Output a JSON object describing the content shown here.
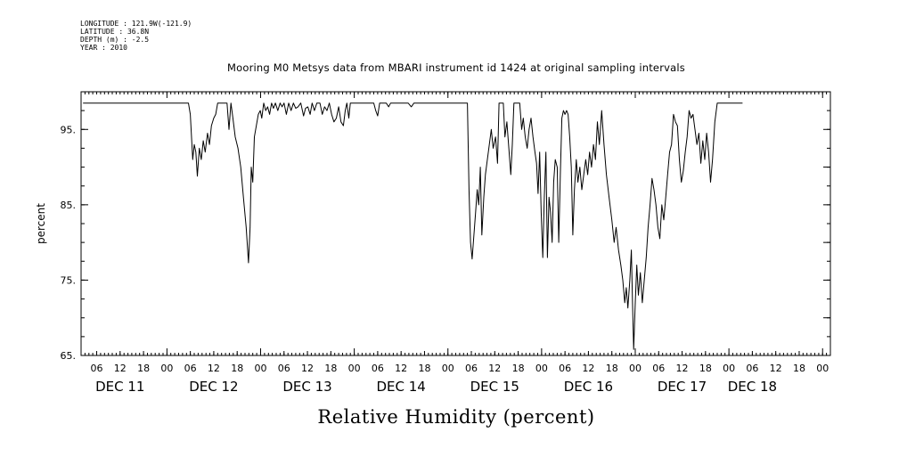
{
  "header": {
    "longitude": "LONGITUDE : 121.9W(-121.9)",
    "latitude": "LATITUDE : 36.8N",
    "depth": "DEPTH (m) : -2.5",
    "year": "YEAR : 2010"
  },
  "colors": {
    "line": "#000000",
    "background": "#ffffff"
  },
  "chart_data": {
    "type": "line",
    "title": "Mooring M0 Metsys data from MBARI instrument id 1424 at original sampling intervals",
    "xlabel": "Relative Humidity (percent)",
    "ylabel": "percent",
    "x_units": "hours since Dec 10 2010 20:00",
    "xlim": [
      6,
      198
    ],
    "ylim": [
      65,
      100
    ],
    "y_ticks": [
      65,
      75,
      85,
      95
    ],
    "y_tick_labels": [
      "65.",
      "75.",
      "85.",
      "95."
    ],
    "x_hour_ticks": [
      {
        "t": 10,
        "label": "06"
      },
      {
        "t": 16,
        "label": "12"
      },
      {
        "t": 22,
        "label": "18"
      },
      {
        "t": 28,
        "label": "00"
      },
      {
        "t": 34,
        "label": "06"
      },
      {
        "t": 40,
        "label": "12"
      },
      {
        "t": 46,
        "label": "18"
      },
      {
        "t": 52,
        "label": "00"
      },
      {
        "t": 58,
        "label": "06"
      },
      {
        "t": 64,
        "label": "12"
      },
      {
        "t": 70,
        "label": "18"
      },
      {
        "t": 76,
        "label": "00"
      },
      {
        "t": 82,
        "label": "06"
      },
      {
        "t": 88,
        "label": "12"
      },
      {
        "t": 94,
        "label": "18"
      },
      {
        "t": 100,
        "label": "00"
      },
      {
        "t": 106,
        "label": "06"
      },
      {
        "t": 112,
        "label": "12"
      },
      {
        "t": 118,
        "label": "18"
      },
      {
        "t": 124,
        "label": "00"
      },
      {
        "t": 130,
        "label": "06"
      },
      {
        "t": 136,
        "label": "12"
      },
      {
        "t": 142,
        "label": "18"
      },
      {
        "t": 148,
        "label": "00"
      },
      {
        "t": 154,
        "label": "06"
      },
      {
        "t": 160,
        "label": "12"
      },
      {
        "t": 166,
        "label": "18"
      },
      {
        "t": 172,
        "label": "00"
      },
      {
        "t": 178,
        "label": "06"
      },
      {
        "t": 184,
        "label": "12"
      },
      {
        "t": 190,
        "label": "18"
      },
      {
        "t": 196,
        "label": "00"
      }
    ],
    "x_day_labels": [
      {
        "t": 16,
        "label": "DEC 11"
      },
      {
        "t": 40,
        "label": "DEC 12"
      },
      {
        "t": 64,
        "label": "DEC 13"
      },
      {
        "t": 88,
        "label": "DEC 14"
      },
      {
        "t": 112,
        "label": "DEC 15"
      },
      {
        "t": 136,
        "label": "DEC 16"
      },
      {
        "t": 160,
        "label": "DEC 17"
      },
      {
        "t": 178,
        "label": "DEC 18"
      }
    ],
    "series": [
      {
        "points": [
          [
            6.5,
            98.5
          ],
          [
            33.5,
            98.5
          ],
          [
            34.0,
            97.0
          ],
          [
            34.6,
            91.0
          ],
          [
            35.0,
            93.0
          ],
          [
            35.4,
            92.0
          ],
          [
            35.8,
            88.8
          ],
          [
            36.3,
            92.5
          ],
          [
            36.8,
            91.0
          ],
          [
            37.3,
            93.5
          ],
          [
            37.8,
            92.0
          ],
          [
            38.4,
            94.5
          ],
          [
            38.9,
            93.0
          ],
          [
            39.4,
            95.5
          ],
          [
            40.0,
            96.5
          ],
          [
            40.5,
            97.0
          ],
          [
            41.0,
            98.5
          ],
          [
            43.4,
            98.5
          ],
          [
            43.9,
            95.0
          ],
          [
            44.4,
            98.5
          ],
          [
            44.9,
            96.5
          ],
          [
            45.5,
            94.0
          ],
          [
            46.2,
            92.5
          ],
          [
            46.9,
            90.0
          ],
          [
            47.6,
            86.0
          ],
          [
            48.3,
            82.0
          ],
          [
            48.9,
            77.3
          ],
          [
            49.3,
            82.0
          ],
          [
            49.6,
            90.0
          ],
          [
            50.0,
            88.0
          ],
          [
            50.4,
            94.0
          ],
          [
            50.9,
            95.5
          ],
          [
            51.4,
            97.0
          ],
          [
            51.9,
            97.5
          ],
          [
            52.3,
            96.5
          ],
          [
            52.8,
            98.5
          ],
          [
            53.3,
            97.5
          ],
          [
            53.8,
            98.0
          ],
          [
            54.3,
            97.0
          ],
          [
            54.8,
            98.5
          ],
          [
            55.3,
            97.8
          ],
          [
            55.8,
            98.5
          ],
          [
            56.4,
            97.5
          ],
          [
            57.0,
            98.5
          ],
          [
            57.5,
            98.0
          ],
          [
            58.0,
            98.5
          ],
          [
            58.6,
            97.0
          ],
          [
            59.2,
            98.5
          ],
          [
            59.8,
            97.5
          ],
          [
            60.4,
            98.5
          ],
          [
            61.0,
            97.8
          ],
          [
            61.6,
            98.0
          ],
          [
            62.3,
            98.5
          ],
          [
            63.0,
            96.8
          ],
          [
            63.5,
            97.8
          ],
          [
            64.1,
            98.0
          ],
          [
            64.7,
            97.0
          ],
          [
            65.2,
            98.5
          ],
          [
            65.8,
            97.5
          ],
          [
            66.4,
            98.5
          ],
          [
            67.2,
            98.5
          ],
          [
            67.8,
            97.0
          ],
          [
            68.4,
            98.0
          ],
          [
            69.0,
            97.5
          ],
          [
            69.6,
            98.5
          ],
          [
            70.2,
            97.0
          ],
          [
            70.8,
            96.0
          ],
          [
            71.4,
            96.5
          ],
          [
            72.0,
            98.0
          ],
          [
            72.6,
            96.0
          ],
          [
            73.2,
            95.5
          ],
          [
            73.7,
            97.5
          ],
          [
            74.1,
            98.5
          ],
          [
            74.6,
            96.5
          ],
          [
            75.0,
            98.5
          ],
          [
            81.0,
            98.5
          ],
          [
            81.5,
            97.5
          ],
          [
            82.0,
            96.8
          ],
          [
            82.5,
            98.5
          ],
          [
            84.2,
            98.5
          ],
          [
            84.8,
            98.0
          ],
          [
            85.3,
            98.5
          ],
          [
            89.8,
            98.5
          ],
          [
            90.6,
            98.0
          ],
          [
            91.3,
            98.5
          ],
          [
            105.0,
            98.5
          ],
          [
            105.4,
            87.0
          ],
          [
            105.8,
            80.0
          ],
          [
            106.2,
            77.8
          ],
          [
            106.6,
            80.5
          ],
          [
            107.1,
            84.0
          ],
          [
            107.5,
            87.0
          ],
          [
            107.9,
            85.0
          ],
          [
            108.3,
            90.0
          ],
          [
            108.7,
            81.0
          ],
          [
            109.2,
            86.0
          ],
          [
            109.6,
            89.0
          ],
          [
            110.1,
            91.0
          ],
          [
            110.6,
            93.0
          ],
          [
            111.1,
            95.0
          ],
          [
            111.6,
            92.5
          ],
          [
            112.2,
            94.0
          ],
          [
            112.7,
            90.5
          ],
          [
            113.1,
            98.5
          ],
          [
            114.2,
            98.5
          ],
          [
            114.6,
            94.0
          ],
          [
            115.1,
            96.0
          ],
          [
            115.6,
            92.5
          ],
          [
            116.1,
            89.0
          ],
          [
            116.5,
            93.0
          ],
          [
            116.9,
            98.5
          ],
          [
            118.4,
            98.5
          ],
          [
            118.9,
            95.0
          ],
          [
            119.3,
            96.5
          ],
          [
            119.8,
            94.0
          ],
          [
            120.3,
            92.5
          ],
          [
            120.8,
            95.0
          ],
          [
            121.3,
            96.5
          ],
          [
            121.8,
            94.0
          ],
          [
            122.3,
            92.0
          ],
          [
            122.7,
            90.5
          ],
          [
            123.1,
            86.5
          ],
          [
            123.5,
            92.0
          ],
          [
            123.9,
            84.0
          ],
          [
            124.3,
            78.0
          ],
          [
            124.7,
            86.0
          ],
          [
            125.1,
            92.0
          ],
          [
            125.5,
            78.0
          ],
          [
            125.9,
            86.0
          ],
          [
            126.3,
            84.0
          ],
          [
            126.7,
            80.0
          ],
          [
            127.1,
            88.0
          ],
          [
            127.5,
            91.0
          ],
          [
            128.0,
            90.0
          ],
          [
            128.4,
            80.0
          ],
          [
            128.8,
            89.0
          ],
          [
            129.2,
            96.5
          ],
          [
            129.6,
            97.5
          ],
          [
            130.0,
            97.0
          ],
          [
            130.4,
            97.5
          ],
          [
            130.8,
            97.0
          ],
          [
            131.2,
            94.0
          ],
          [
            131.6,
            90.0
          ],
          [
            132.0,
            81.0
          ],
          [
            132.4,
            87.0
          ],
          [
            132.9,
            91.0
          ],
          [
            133.3,
            88.0
          ],
          [
            133.8,
            90.0
          ],
          [
            134.3,
            87.0
          ],
          [
            134.8,
            89.0
          ],
          [
            135.3,
            91.0
          ],
          [
            135.8,
            89.0
          ],
          [
            136.3,
            92.0
          ],
          [
            136.8,
            90.0
          ],
          [
            137.3,
            93.0
          ],
          [
            137.8,
            91.0
          ],
          [
            138.3,
            96.0
          ],
          [
            138.8,
            93.0
          ],
          [
            139.4,
            97.5
          ],
          [
            140.0,
            93.0
          ],
          [
            140.6,
            89.0
          ],
          [
            141.3,
            86.0
          ],
          [
            142.0,
            83.0
          ],
          [
            142.6,
            80.0
          ],
          [
            143.1,
            82.0
          ],
          [
            143.7,
            79.0
          ],
          [
            144.3,
            77.0
          ],
          [
            144.8,
            75.0
          ],
          [
            145.3,
            72.0
          ],
          [
            145.7,
            74.0
          ],
          [
            146.1,
            71.3
          ],
          [
            146.6,
            75.0
          ],
          [
            147.0,
            79.0
          ],
          [
            147.3,
            72.0
          ],
          [
            147.6,
            65.8
          ],
          [
            148.0,
            72.0
          ],
          [
            148.4,
            77.0
          ],
          [
            148.8,
            73.0
          ],
          [
            149.3,
            76.0
          ],
          [
            149.8,
            72.0
          ],
          [
            150.3,
            75.0
          ],
          [
            150.8,
            78.0
          ],
          [
            151.3,
            82.0
          ],
          [
            151.8,
            85.0
          ],
          [
            152.3,
            88.5
          ],
          [
            152.8,
            87.0
          ],
          [
            153.3,
            85.0
          ],
          [
            153.8,
            82.0
          ],
          [
            154.3,
            80.5
          ],
          [
            154.8,
            85.0
          ],
          [
            155.3,
            83.0
          ],
          [
            155.8,
            86.0
          ],
          [
            156.3,
            89.0
          ],
          [
            156.8,
            92.0
          ],
          [
            157.3,
            93.0
          ],
          [
            157.8,
            97.0
          ],
          [
            158.3,
            96.0
          ],
          [
            158.8,
            95.5
          ],
          [
            159.3,
            91.0
          ],
          [
            159.8,
            88.0
          ],
          [
            160.3,
            89.5
          ],
          [
            160.8,
            92.0
          ],
          [
            161.3,
            94.0
          ],
          [
            161.8,
            97.5
          ],
          [
            162.3,
            96.5
          ],
          [
            162.8,
            97.0
          ],
          [
            163.3,
            95.0
          ],
          [
            163.8,
            93.0
          ],
          [
            164.3,
            94.5
          ],
          [
            164.8,
            90.5
          ],
          [
            165.3,
            93.5
          ],
          [
            165.8,
            91.0
          ],
          [
            166.3,
            94.5
          ],
          [
            166.8,
            92.0
          ],
          [
            167.3,
            88.0
          ],
          [
            167.8,
            91.0
          ],
          [
            168.4,
            96.0
          ],
          [
            169.0,
            98.5
          ],
          [
            175.5,
            98.5
          ]
        ]
      }
    ]
  }
}
